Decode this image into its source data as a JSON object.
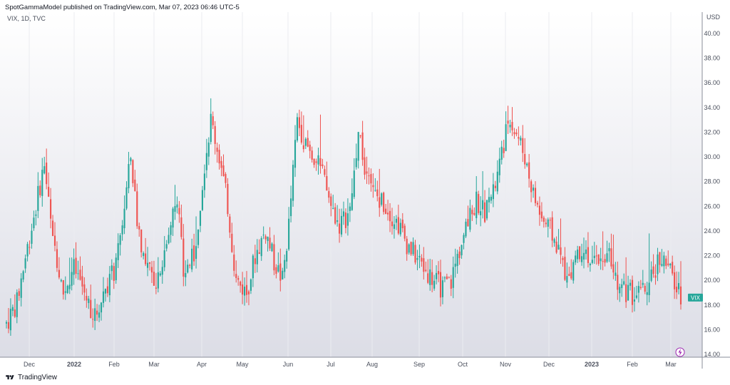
{
  "header": {
    "published": "SpotGammaModel published on TradingView.com, Mar 07, 2023 06:46 UTC-5",
    "symbol": "VIX, 1D, TVC"
  },
  "footer": {
    "brand": "TradingView"
  },
  "colors": {
    "up": "#26a69a",
    "down": "#ef5350",
    "badge": "#26a69a"
  },
  "icons": [
    "lightning-icon",
    "tradingview-logo-icon"
  ],
  "chart_data": {
    "type": "candlestick",
    "ylabel": "USD",
    "ylim": [
      14,
      41
    ],
    "y_ticks": [
      "40.00",
      "38.00",
      "36.00",
      "34.00",
      "32.00",
      "30.00",
      "28.00",
      "26.00",
      "24.00",
      "22.00",
      "20.00",
      "18.00",
      "16.00",
      "14.00"
    ],
    "x_ticks": [
      "Dec",
      "2022",
      "Feb",
      "Mar",
      "Apr",
      "May",
      "Jun",
      "Jul",
      "Aug",
      "Sep",
      "Oct",
      "Nov",
      "Dec",
      "2023",
      "Feb",
      "Mar"
    ],
    "last_label": "VIX",
    "last_value": 18.6,
    "anchors": [
      [
        0,
        16.5
      ],
      [
        5,
        18.2
      ],
      [
        8,
        21
      ],
      [
        14,
        26
      ],
      [
        18,
        29.5
      ],
      [
        22,
        23
      ],
      [
        27,
        19
      ],
      [
        32,
        21
      ],
      [
        37,
        19
      ],
      [
        42,
        17
      ],
      [
        47,
        19.5
      ],
      [
        52,
        21
      ],
      [
        56,
        26
      ],
      [
        59,
        30
      ],
      [
        62,
        25
      ],
      [
        66,
        21
      ],
      [
        71,
        20
      ],
      [
        76,
        23
      ],
      [
        81,
        27
      ],
      [
        84,
        20.5
      ],
      [
        89,
        22
      ],
      [
        94,
        29.5
      ],
      [
        97,
        33
      ],
      [
        101,
        30
      ],
      [
        105,
        26
      ],
      [
        109,
        20
      ],
      [
        114,
        19
      ],
      [
        118,
        22
      ],
      [
        123,
        24
      ],
      [
        127,
        21.5
      ],
      [
        131,
        20
      ],
      [
        134,
        24.5
      ],
      [
        138,
        33
      ],
      [
        142,
        31
      ],
      [
        146,
        30
      ],
      [
        150,
        28.5
      ],
      [
        154,
        26
      ],
      [
        158,
        24.5
      ],
      [
        163,
        25.5
      ],
      [
        167,
        32
      ],
      [
        170,
        29
      ],
      [
        174,
        27
      ],
      [
        178,
        26.5
      ],
      [
        182,
        25.5
      ],
      [
        186,
        24.5
      ],
      [
        190,
        23
      ],
      [
        194,
        22
      ],
      [
        198,
        21
      ],
      [
        203,
        20
      ],
      [
        207,
        19.3
      ],
      [
        211,
        20
      ],
      [
        215,
        22.5
      ],
      [
        219,
        24.5
      ],
      [
        223,
        26.5
      ],
      [
        227,
        25.5
      ],
      [
        231,
        27
      ],
      [
        235,
        30
      ],
      [
        238,
        33
      ],
      [
        242,
        32
      ],
      [
        246,
        30
      ],
      [
        250,
        27
      ],
      [
        254,
        25
      ],
      [
        258,
        24
      ],
      [
        262,
        22.5
      ],
      [
        266,
        20
      ],
      [
        270,
        22
      ],
      [
        274,
        23
      ],
      [
        278,
        21
      ],
      [
        282,
        22
      ],
      [
        286,
        22.5
      ],
      [
        290,
        20
      ],
      [
        294,
        19
      ],
      [
        298,
        18.8
      ],
      [
        302,
        19
      ],
      [
        306,
        20
      ],
      [
        310,
        22
      ],
      [
        314,
        21
      ],
      [
        318,
        19.3
      ],
      [
        320,
        18.6
      ]
    ],
    "n_days": 321
  }
}
